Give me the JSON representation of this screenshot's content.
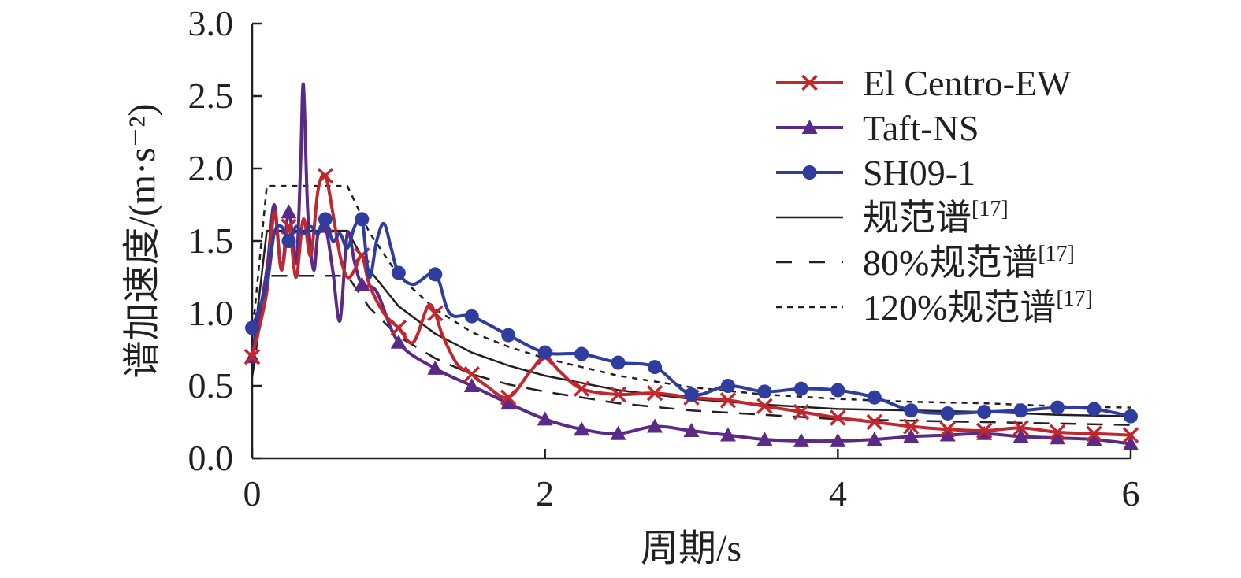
{
  "chart_data": {
    "type": "line",
    "xlabel": "周期/s",
    "ylabel": "谱加速度/(m·s⁻²)",
    "xlim": [
      0,
      6
    ],
    "ylim": [
      0,
      3.0
    ],
    "xticks": [
      "0",
      "2",
      "4",
      "6"
    ],
    "yticks": [
      "0.0",
      "0.5",
      "1.0",
      "1.5",
      "2.0",
      "2.5",
      "3.0"
    ],
    "grid": false,
    "legend_position": "top-right",
    "series": [
      {
        "name": "El Centro-EW",
        "color": "#c1272d",
        "marker": "x-cross",
        "x": [
          0,
          0.1,
          0.15,
          0.2,
          0.25,
          0.3,
          0.35,
          0.4,
          0.45,
          0.5,
          0.55,
          0.6,
          0.65,
          0.7,
          0.75,
          0.8,
          0.9,
          1.0,
          1.1,
          1.2,
          1.25,
          1.3,
          1.4,
          1.5,
          1.6,
          1.75,
          1.9,
          2.0,
          2.1,
          2.25,
          2.5,
          2.75,
          3.0,
          3.25,
          3.5,
          3.75,
          4.0,
          4.25,
          4.5,
          4.75,
          5.0,
          5.25,
          5.5,
          5.75,
          6.0
        ],
        "y": [
          0.7,
          1.15,
          1.7,
          1.3,
          1.6,
          1.25,
          1.65,
          1.4,
          1.85,
          1.95,
          1.7,
          1.4,
          1.25,
          1.3,
          1.4,
          1.2,
          1.0,
          0.9,
          0.8,
          1.05,
          1.0,
          0.85,
          0.65,
          0.58,
          0.5,
          0.42,
          0.6,
          0.7,
          0.6,
          0.48,
          0.44,
          0.45,
          0.42,
          0.4,
          0.36,
          0.32,
          0.28,
          0.25,
          0.22,
          0.2,
          0.19,
          0.21,
          0.18,
          0.17,
          0.16
        ]
      },
      {
        "name": "Taft-NS",
        "color": "#5b2a86",
        "marker": "triangle",
        "x": [
          0,
          0.1,
          0.15,
          0.2,
          0.25,
          0.3,
          0.33,
          0.35,
          0.38,
          0.42,
          0.45,
          0.5,
          0.55,
          0.6,
          0.65,
          0.7,
          0.75,
          0.85,
          1.0,
          1.25,
          1.5,
          1.75,
          2.0,
          2.25,
          2.5,
          2.75,
          3.0,
          3.25,
          3.5,
          3.75,
          4.0,
          4.25,
          4.5,
          4.75,
          5.0,
          5.25,
          5.5,
          5.75,
          6.0
        ],
        "y": [
          0.7,
          1.3,
          1.75,
          1.3,
          1.7,
          1.35,
          2.0,
          2.58,
          1.7,
          1.3,
          1.55,
          1.6,
          1.3,
          0.95,
          1.55,
          1.35,
          1.2,
          1.15,
          0.8,
          0.62,
          0.5,
          0.38,
          0.27,
          0.2,
          0.17,
          0.22,
          0.19,
          0.16,
          0.13,
          0.12,
          0.12,
          0.13,
          0.15,
          0.16,
          0.17,
          0.15,
          0.14,
          0.13,
          0.1
        ]
      },
      {
        "name": "SH09-1",
        "color": "#2e3d9e",
        "marker": "circle",
        "x": [
          0,
          0.1,
          0.15,
          0.2,
          0.25,
          0.3,
          0.35,
          0.4,
          0.45,
          0.5,
          0.55,
          0.6,
          0.65,
          0.7,
          0.75,
          0.8,
          0.85,
          0.9,
          0.95,
          1.0,
          1.1,
          1.25,
          1.35,
          1.5,
          1.75,
          2.0,
          2.25,
          2.5,
          2.75,
          3.0,
          3.25,
          3.5,
          3.75,
          4.0,
          4.25,
          4.5,
          4.75,
          5.0,
          5.25,
          5.5,
          5.75,
          6.0
        ],
        "y": [
          0.9,
          1.2,
          1.55,
          1.6,
          1.5,
          1.6,
          1.55,
          1.6,
          1.55,
          1.65,
          1.5,
          1.55,
          1.45,
          1.6,
          1.65,
          1.25,
          1.5,
          1.62,
          1.45,
          1.28,
          1.2,
          1.27,
          1.0,
          0.98,
          0.85,
          0.73,
          0.72,
          0.66,
          0.63,
          0.44,
          0.5,
          0.46,
          0.48,
          0.47,
          0.42,
          0.33,
          0.31,
          0.32,
          0.33,
          0.35,
          0.34,
          0.29
        ]
      },
      {
        "name": "规范谱[17]",
        "color": "#231f20",
        "style": "solid",
        "x": [
          0,
          0.1,
          0.2,
          0.3,
          0.4,
          0.5,
          0.65,
          0.8,
          1.0,
          1.25,
          1.5,
          1.75,
          2.0,
          2.5,
          3.0,
          3.5,
          4.0,
          4.5,
          5.0,
          5.5,
          6.0
        ],
        "y": [
          0.7,
          1.57,
          1.57,
          1.57,
          1.57,
          1.57,
          1.57,
          1.3,
          1.05,
          0.86,
          0.73,
          0.64,
          0.57,
          0.47,
          0.41,
          0.37,
          0.34,
          0.33,
          0.32,
          0.3,
          0.29
        ]
      },
      {
        "name": "80%规范谱[17]",
        "color": "#231f20",
        "style": "dashed",
        "x": [
          0,
          0.1,
          0.2,
          0.3,
          0.4,
          0.5,
          0.65,
          0.8,
          1.0,
          1.25,
          1.5,
          1.75,
          2.0,
          2.5,
          3.0,
          3.5,
          4.0,
          4.5,
          5.0,
          5.5,
          6.0
        ],
        "y": [
          0.56,
          1.26,
          1.26,
          1.26,
          1.26,
          1.26,
          1.26,
          1.04,
          0.84,
          0.69,
          0.58,
          0.51,
          0.46,
          0.38,
          0.33,
          0.3,
          0.27,
          0.26,
          0.25,
          0.24,
          0.23
        ]
      },
      {
        "name": "120%规范谱[17]",
        "color": "#231f20",
        "style": "dotted",
        "x": [
          0,
          0.1,
          0.2,
          0.3,
          0.4,
          0.5,
          0.65,
          0.8,
          1.0,
          1.25,
          1.5,
          1.75,
          2.0,
          2.5,
          3.0,
          3.5,
          4.0,
          4.5,
          5.0,
          5.5,
          6.0
        ],
        "y": [
          0.84,
          1.88,
          1.88,
          1.88,
          1.88,
          1.88,
          1.88,
          1.56,
          1.26,
          1.03,
          0.87,
          0.77,
          0.69,
          0.57,
          0.49,
          0.44,
          0.41,
          0.39,
          0.38,
          0.36,
          0.35
        ]
      }
    ],
    "legend": [
      {
        "text": "El Centro-EW",
        "sup": ""
      },
      {
        "text": "Taft-NS",
        "sup": ""
      },
      {
        "text": "SH09-1",
        "sup": ""
      },
      {
        "text": "规范谱",
        "sup": "[17]"
      },
      {
        "text": "80%规范谱",
        "sup": "[17]"
      },
      {
        "text": "120%规范谱",
        "sup": "[17]"
      }
    ]
  }
}
